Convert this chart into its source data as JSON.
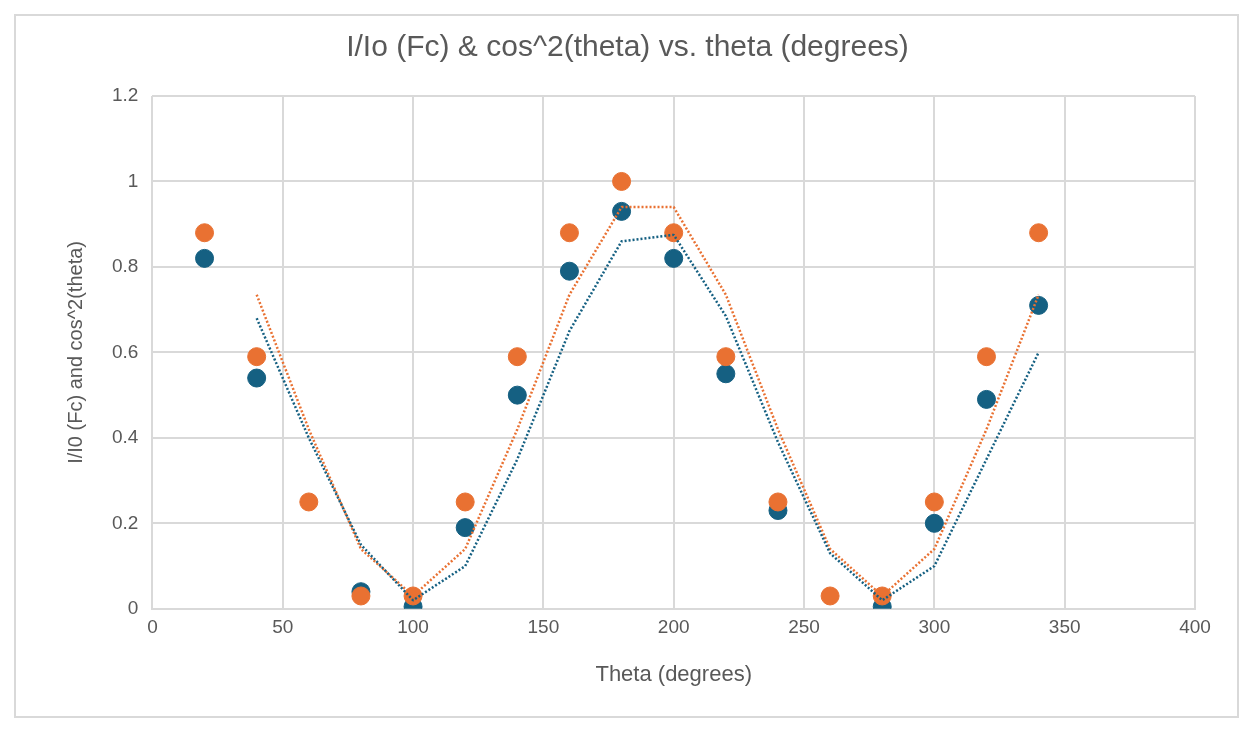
{
  "chart_data": {
    "type": "scatter",
    "title": "I/Io (Fc) & cos^2(theta) vs. theta (degrees)",
    "xlabel": "Theta (degrees)",
    "ylabel": "I/I0 (Fc) and cos^2(theta)",
    "xlim": [
      0,
      400
    ],
    "xticks": [
      0,
      50,
      100,
      150,
      200,
      250,
      300,
      350,
      400
    ],
    "ylim": [
      0,
      1.2
    ],
    "yticks": [
      0,
      0.2,
      0.4,
      0.6,
      0.8,
      1,
      1.2
    ],
    "grid": true,
    "marker": "circle",
    "series": [
      {
        "color": "#156082",
        "x": [
          20,
          40,
          60,
          80,
          100,
          120,
          140,
          160,
          180,
          200,
          220,
          240,
          260,
          280,
          300,
          320,
          340
        ],
        "values": [
          0.82,
          0.54,
          null,
          0.04,
          0.005,
          0.19,
          0.5,
          0.79,
          0.93,
          0.82,
          0.55,
          0.23,
          null,
          0.005,
          0.2,
          0.49,
          0.71
        ]
      },
      {
        "color": "#e97132",
        "x": [
          20,
          40,
          60,
          80,
          100,
          120,
          140,
          160,
          180,
          200,
          220,
          240,
          260,
          280,
          300,
          320,
          340
        ],
        "values": [
          0.88,
          0.59,
          0.25,
          0.03,
          0.03,
          0.25,
          0.59,
          0.88,
          1,
          0.88,
          0.59,
          0.25,
          0.03,
          0.03,
          0.25,
          0.59,
          0.88
        ]
      },
      {
        "type": "line",
        "line_style": "dotted",
        "marker": "none",
        "color": "#156082",
        "x": [
          40,
          60,
          80,
          100,
          120,
          140,
          160,
          180,
          200,
          220,
          240,
          260,
          280,
          300,
          320,
          340
        ],
        "values": [
          0.68,
          0.4,
          0.15,
          0.02,
          0.1,
          0.35,
          0.65,
          0.86,
          0.875,
          0.685,
          0.39,
          0.13,
          0.02,
          0.1,
          0.35,
          0.6
        ]
      },
      {
        "type": "line",
        "line_style": "dotted",
        "marker": "none",
        "color": "#e97132",
        "x": [
          40,
          60,
          80,
          100,
          120,
          140,
          160,
          180,
          200,
          220,
          240,
          260,
          280,
          300,
          320,
          340
        ],
        "values": [
          0.735,
          0.42,
          0.14,
          0.03,
          0.14,
          0.42,
          0.735,
          0.94,
          0.94,
          0.735,
          0.42,
          0.14,
          0.03,
          0.14,
          0.42,
          0.735
        ]
      }
    ]
  }
}
